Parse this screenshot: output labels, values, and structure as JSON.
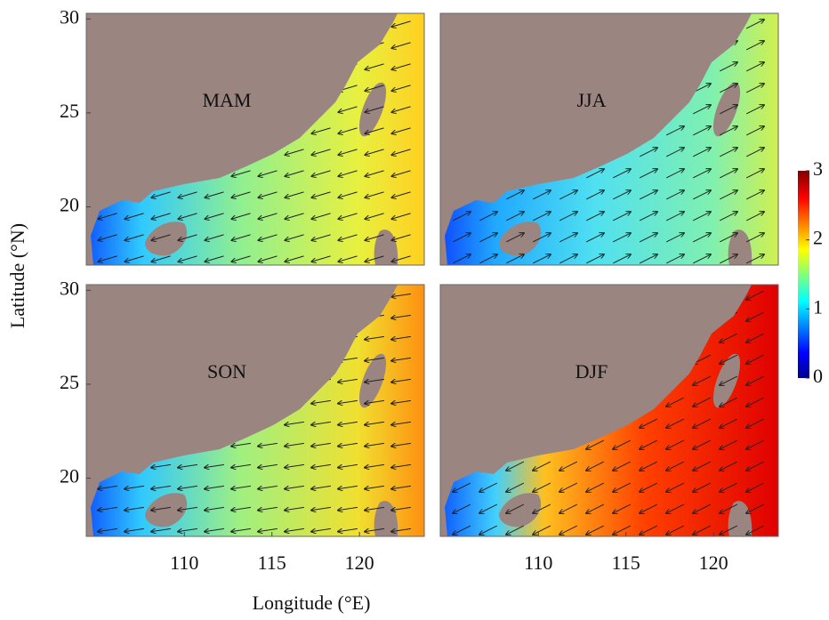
{
  "panels": [
    {
      "title": "MAM"
    },
    {
      "title": "JJA"
    },
    {
      "title": "SON"
    },
    {
      "title": "DJF"
    }
  ],
  "xlabel": "Longitude (°E)",
  "ylabel": "Latitude (°N)",
  "xlim": [
    104.4,
    123.7
  ],
  "ylim": [
    16.9,
    30.3
  ],
  "xticks": [
    110,
    115,
    120
  ],
  "yticks": [
    20,
    25,
    30
  ],
  "colorbar": {
    "lim": [
      0,
      3
    ],
    "ticks": [
      0,
      1,
      2,
      3
    ]
  }
}
